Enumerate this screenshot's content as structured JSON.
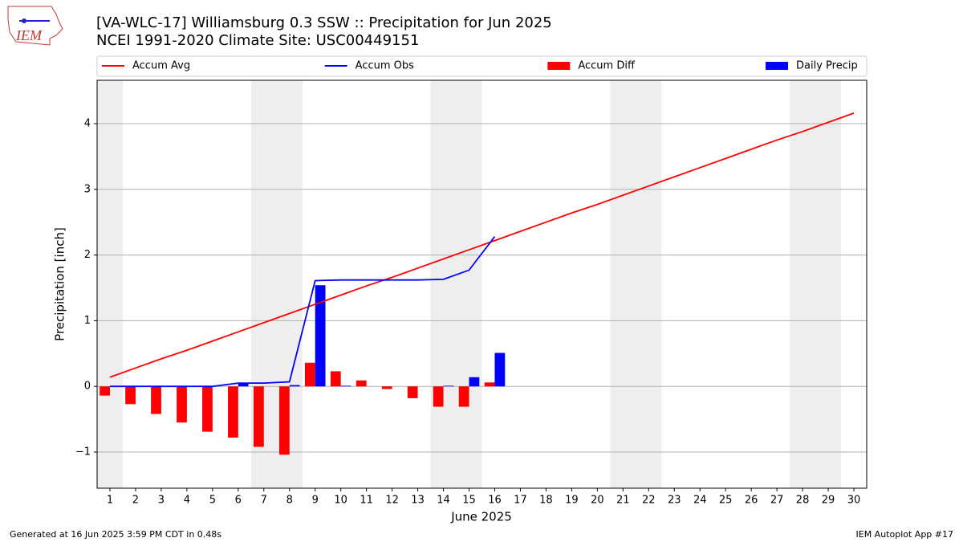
{
  "logo_text": "IEM",
  "chart_data": {
    "type": "bar_line",
    "title": "[VA-WLC-17] Williamsburg 0.3 SSW :: Precipitation for Jun 2025",
    "subtitle": "NCEI 1991-2020 Climate Site: USC00449151",
    "x_label": "June 2025",
    "y_label": "Precipitation [inch]",
    "x": [
      1,
      2,
      3,
      4,
      5,
      6,
      7,
      8,
      9,
      10,
      11,
      12,
      13,
      14,
      15,
      16,
      17,
      18,
      19,
      20,
      21,
      22,
      23,
      24,
      25,
      26,
      27,
      28,
      29,
      30
    ],
    "xlim": [
      0.5,
      30.5
    ],
    "xticks": [
      1,
      2,
      3,
      4,
      5,
      6,
      7,
      8,
      9,
      10,
      11,
      12,
      13,
      14,
      15,
      16,
      17,
      18,
      19,
      20,
      21,
      22,
      23,
      24,
      25,
      26,
      27,
      28,
      29,
      30
    ],
    "ylim": [
      -1.55,
      4.66
    ],
    "yticks": [
      {
        "value": -1,
        "label": "−1"
      },
      0,
      1,
      2,
      3,
      4
    ],
    "grid": true,
    "shaded_days": [
      1,
      7,
      8,
      14,
      15,
      21,
      22,
      28,
      29
    ],
    "series": [
      {
        "name": "Accum Avg",
        "type": "line",
        "color": "#ff0000",
        "values": [
          0.14,
          0.28,
          0.42,
          0.55,
          0.69,
          0.83,
          0.97,
          1.11,
          1.25,
          1.39,
          1.53,
          1.66,
          1.8,
          1.94,
          2.08,
          2.22,
          2.36,
          2.5,
          2.64,
          2.77,
          2.91,
          3.05,
          3.19,
          3.33,
          3.47,
          3.61,
          3.75,
          3.88,
          4.02,
          4.16
        ]
      },
      {
        "name": "Accum Obs",
        "type": "line",
        "color": "#0000ff",
        "values": [
          0,
          0,
          0,
          0,
          0,
          0.05,
          0.05,
          0.07,
          1.61,
          1.62,
          1.62,
          1.62,
          1.62,
          1.63,
          1.77,
          2.28,
          null,
          null,
          null,
          null,
          null,
          null,
          null,
          null,
          null,
          null,
          null,
          null,
          null,
          null
        ]
      },
      {
        "name": "Accum Diff",
        "type": "bar",
        "color": "#ff0000",
        "values": [
          -0.14,
          -0.27,
          -0.42,
          -0.55,
          -0.69,
          -0.78,
          -0.92,
          -1.04,
          0.36,
          0.23,
          0.09,
          -0.04,
          -0.18,
          -0.31,
          -0.31,
          0.06,
          null,
          null,
          null,
          null,
          null,
          null,
          null,
          null,
          null,
          null,
          null,
          null,
          null,
          null
        ]
      },
      {
        "name": "Daily Precip",
        "type": "bar",
        "color": "#0000ff",
        "values": [
          0,
          0,
          0,
          0,
          0,
          0.05,
          0,
          0.02,
          1.54,
          0.01,
          0,
          0,
          0,
          0.01,
          0.14,
          0.51,
          null,
          null,
          null,
          null,
          null,
          null,
          null,
          null,
          null,
          null,
          null,
          null,
          null,
          null
        ]
      }
    ],
    "footer_left": "Generated at 16 Jun 2025 3:59 PM CDT in 0.48s",
    "footer_right": "IEM Autoplot App #17"
  }
}
